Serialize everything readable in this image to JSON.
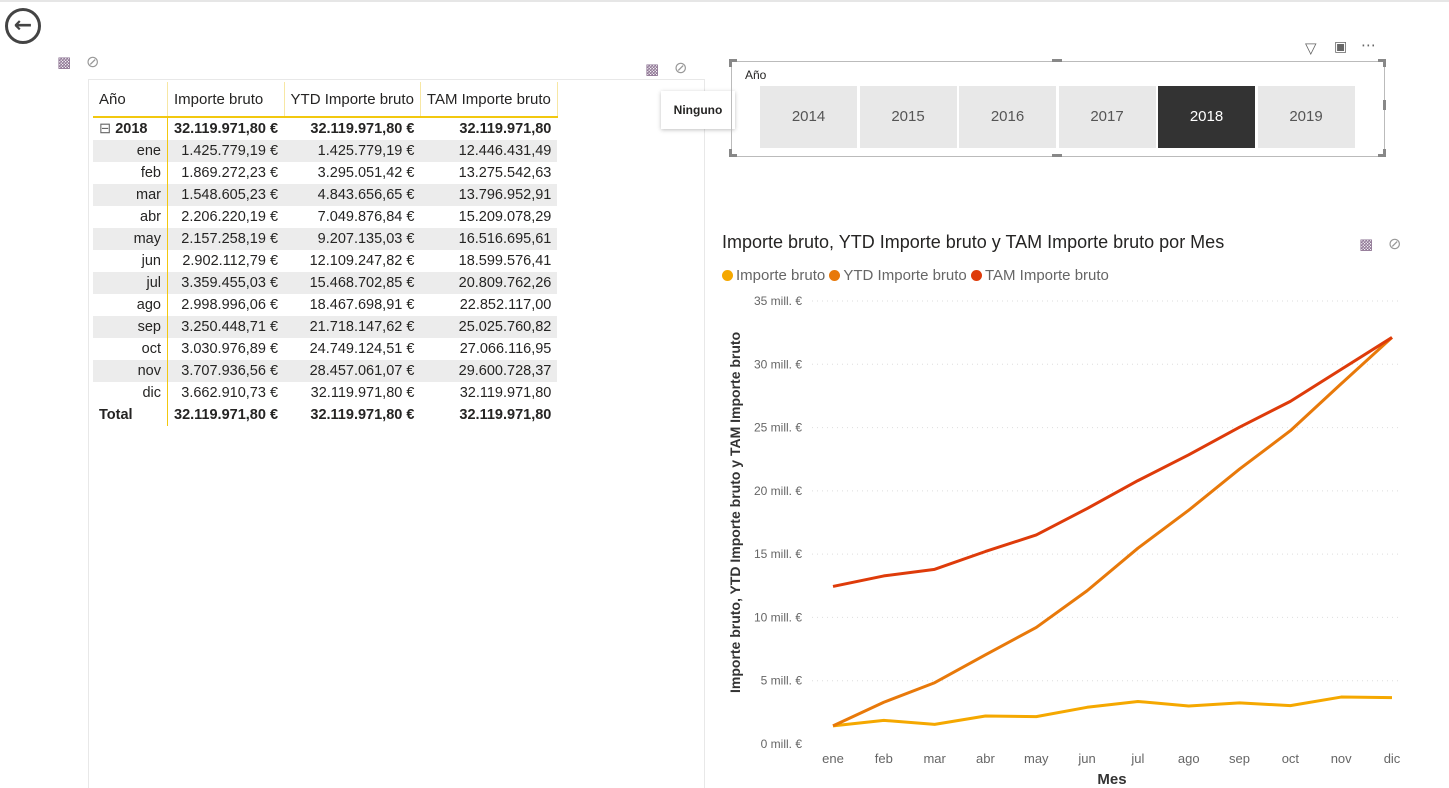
{
  "nav": {
    "back_icon": "back-arrow-icon"
  },
  "table": {
    "headers": [
      "Año",
      "Importe bruto",
      "YTD Importe bruto",
      "TAM Importe bruto"
    ],
    "year_row": {
      "label": "2018",
      "importe": "32.119.971,80 €",
      "ytd": "32.119.971,80 €",
      "tam": "32.119.971,80"
    },
    "rows": [
      [
        "ene",
        "1.425.779,19 €",
        "1.425.779,19 €",
        "12.446.431,49"
      ],
      [
        "feb",
        "1.869.272,23 €",
        "3.295.051,42 €",
        "13.275.542,63"
      ],
      [
        "mar",
        "1.548.605,23 €",
        "4.843.656,65 €",
        "13.796.952,91"
      ],
      [
        "abr",
        "2.206.220,19 €",
        "7.049.876,84 €",
        "15.209.078,29"
      ],
      [
        "may",
        "2.157.258,19 €",
        "9.207.135,03 €",
        "16.516.695,61"
      ],
      [
        "jun",
        "2.902.112,79 €",
        "12.109.247,82 €",
        "18.599.576,41"
      ],
      [
        "jul",
        "3.359.455,03 €",
        "15.468.702,85 €",
        "20.809.762,26"
      ],
      [
        "ago",
        "2.998.996,06 €",
        "18.467.698,91 €",
        "22.852.117,00"
      ],
      [
        "sep",
        "3.250.448,71 €",
        "21.718.147,62 €",
        "25.025.760,82"
      ],
      [
        "oct",
        "3.030.976,89 €",
        "24.749.124,51 €",
        "27.066.116,95"
      ],
      [
        "nov",
        "3.707.936,56 €",
        "28.457.061,07 €",
        "29.600.728,37"
      ],
      [
        "dic",
        "3.662.910,73 €",
        "32.119.971,80 €",
        "32.119.971,80"
      ]
    ],
    "total": [
      "Total",
      "32.119.971,80 €",
      "32.119.971,80 €",
      "32.119.971,80"
    ]
  },
  "tooltip": {
    "text": "Ninguno"
  },
  "slicer": {
    "title": "Año",
    "options": [
      "2014",
      "2015",
      "2016",
      "2017",
      "2018",
      "2019"
    ],
    "selected": "2018"
  },
  "chart_data": {
    "type": "line",
    "title": "Importe bruto, YTD Importe bruto y TAM Importe bruto por Mes",
    "xlabel": "Mes",
    "ylabel": "Importe bruto, YTD Importe bruto y TAM Importe bruto",
    "categories": [
      "ene",
      "feb",
      "mar",
      "abr",
      "may",
      "jun",
      "jul",
      "ago",
      "sep",
      "oct",
      "nov",
      "dic"
    ],
    "ylim": [
      0,
      35
    ],
    "yticks": [
      0,
      5,
      10,
      15,
      20,
      25,
      30,
      35
    ],
    "ytick_labels": [
      "0 mill. €",
      "5 mill. €",
      "10 mill. €",
      "15 mill. €",
      "20 mill. €",
      "25 mill. €",
      "30 mill. €",
      "35 mill. €"
    ],
    "legend": "top-left",
    "series": [
      {
        "name": "Importe bruto",
        "color": "#f5a800",
        "values": [
          1.43,
          1.87,
          1.55,
          2.21,
          2.16,
          2.9,
          3.36,
          3.0,
          3.25,
          3.03,
          3.71,
          3.66
        ]
      },
      {
        "name": "YTD Importe bruto",
        "color": "#e8790a",
        "values": [
          1.43,
          3.3,
          4.84,
          7.05,
          9.21,
          12.11,
          15.47,
          18.47,
          21.72,
          24.75,
          28.46,
          32.12
        ]
      },
      {
        "name": "TAM Importe bruto",
        "color": "#de3b0a",
        "values": [
          12.45,
          13.28,
          13.8,
          15.21,
          16.52,
          18.6,
          20.81,
          22.85,
          25.03,
          27.07,
          29.6,
          32.12
        ]
      }
    ]
  }
}
